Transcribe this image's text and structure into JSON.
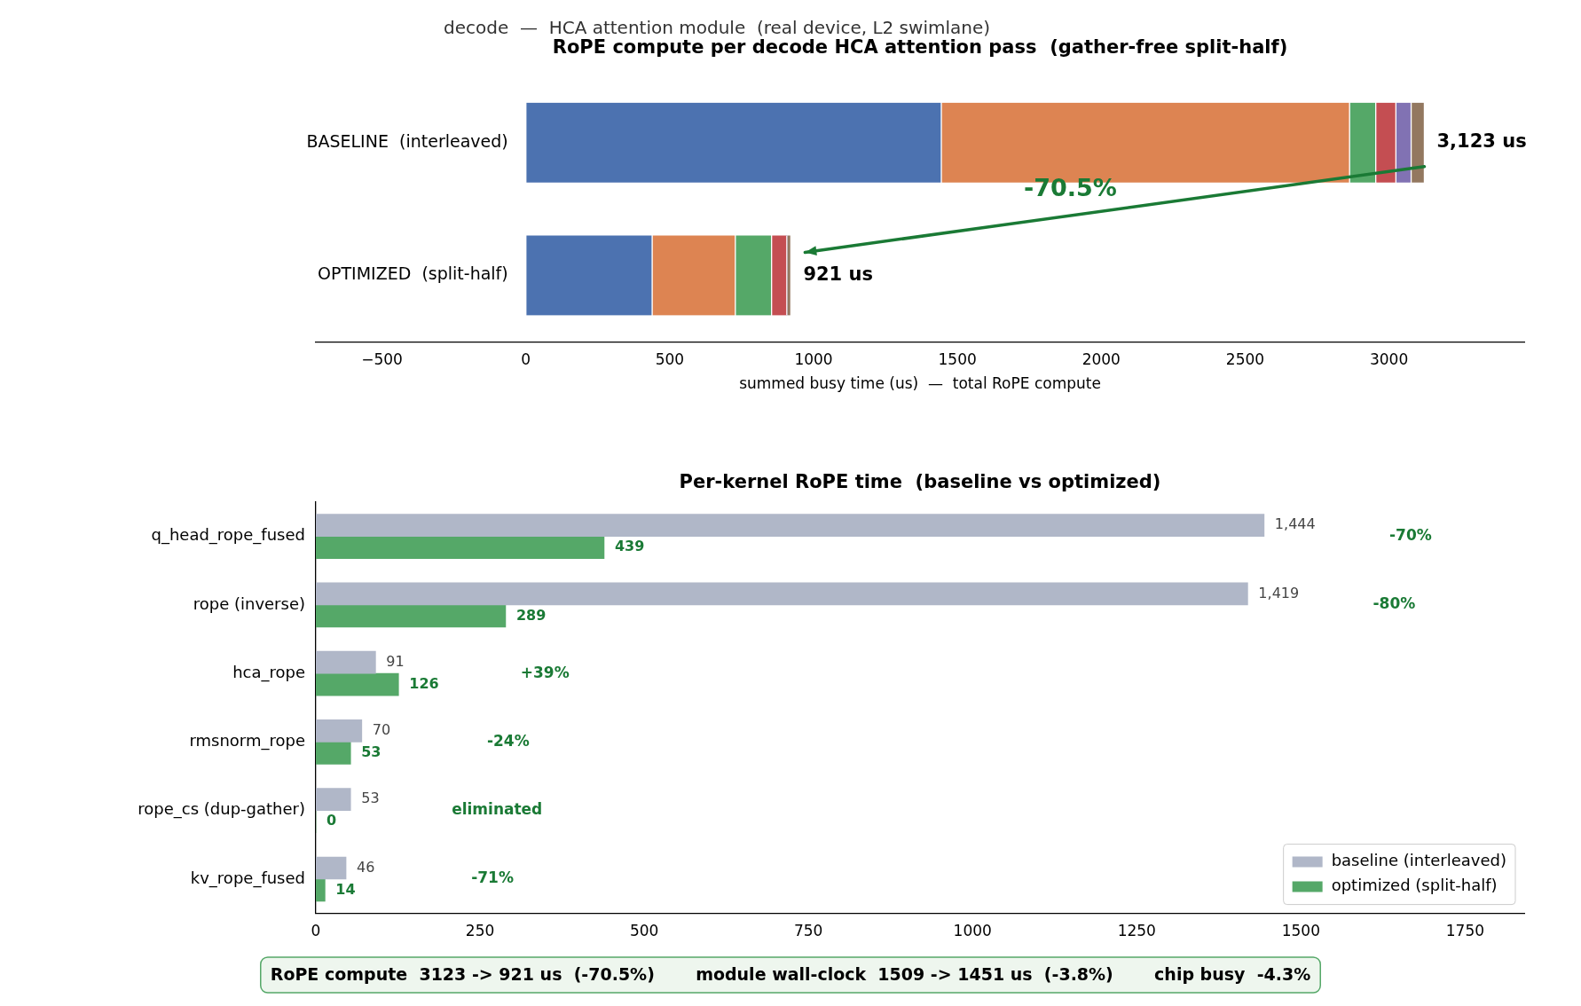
{
  "chart_data": [
    {
      "type": "bar",
      "orientation": "horizontal",
      "stacked": true,
      "subtitle": "decode  —  HCA attention module  (real device, L2 swimlane)",
      "title": "RoPE compute per decode HCA attention pass  (gather-free split-half)",
      "xlabel": "summed busy time (us)  —  total RoPE compute",
      "categories": [
        "BASELINE  (interleaved)",
        "OPTIMIZED  (split-half)"
      ],
      "series": [
        {
          "color": "#4c72b0",
          "values": [
            1444,
            439
          ]
        },
        {
          "color": "#dd8452",
          "values": [
            1419,
            289
          ]
        },
        {
          "color": "#55a868",
          "values": [
            91,
            126
          ]
        },
        {
          "color": "#c44e52",
          "values": [
            70,
            53
          ]
        },
        {
          "color": "#8172b3",
          "values": [
            53,
            0
          ]
        },
        {
          "color": "#937860",
          "values": [
            46,
            14
          ]
        }
      ],
      "totals": [
        "3,123 us",
        "921 us"
      ],
      "annotations": [
        "-70.5%"
      ],
      "xlim": [
        -730,
        3470
      ],
      "xticks": [
        {
          "value": -500,
          "label": "−500"
        },
        0,
        500,
        1000,
        1500,
        2000,
        2500,
        3000
      ],
      "grid": false
    },
    {
      "type": "bar",
      "orientation": "horizontal",
      "title": "Per-kernel RoPE time  (baseline vs optimized)",
      "categories": [
        "q_head_rope_fused",
        "rope (inverse)",
        "hca_rope",
        "rmsnorm_rope",
        "rope_cs (dup-gather)",
        "kv_rope_fused"
      ],
      "series": [
        {
          "name": "baseline (interleaved)",
          "color": "#b0b7c8",
          "values": [
            1444,
            1419,
            91,
            70,
            53,
            46
          ],
          "value_labels": [
            "1,444",
            "1,419",
            "91",
            "70",
            "53",
            "46"
          ]
        },
        {
          "name": "optimized (split-half)",
          "color": "#55a868",
          "values": [
            439,
            289,
            126,
            53,
            0,
            14
          ],
          "value_labels": [
            "439",
            "289",
            "126",
            "53",
            "0",
            "14"
          ]
        }
      ],
      "annotations": [
        "-70%",
        "-80%",
        "+39%",
        "-24%",
        "eliminated",
        "-71%",
        "RoPE compute  3123 -> 921 us  (-70.5%)       module wall-clock  1509 -> 1451 us  (-3.8%)       chip busy  -4.3%"
      ],
      "xlim": [
        0,
        1840
      ],
      "xticks": [
        0,
        250,
        500,
        750,
        1000,
        1250,
        1500,
        1750
      ],
      "grid": false,
      "legend": "bottom right"
    }
  ]
}
